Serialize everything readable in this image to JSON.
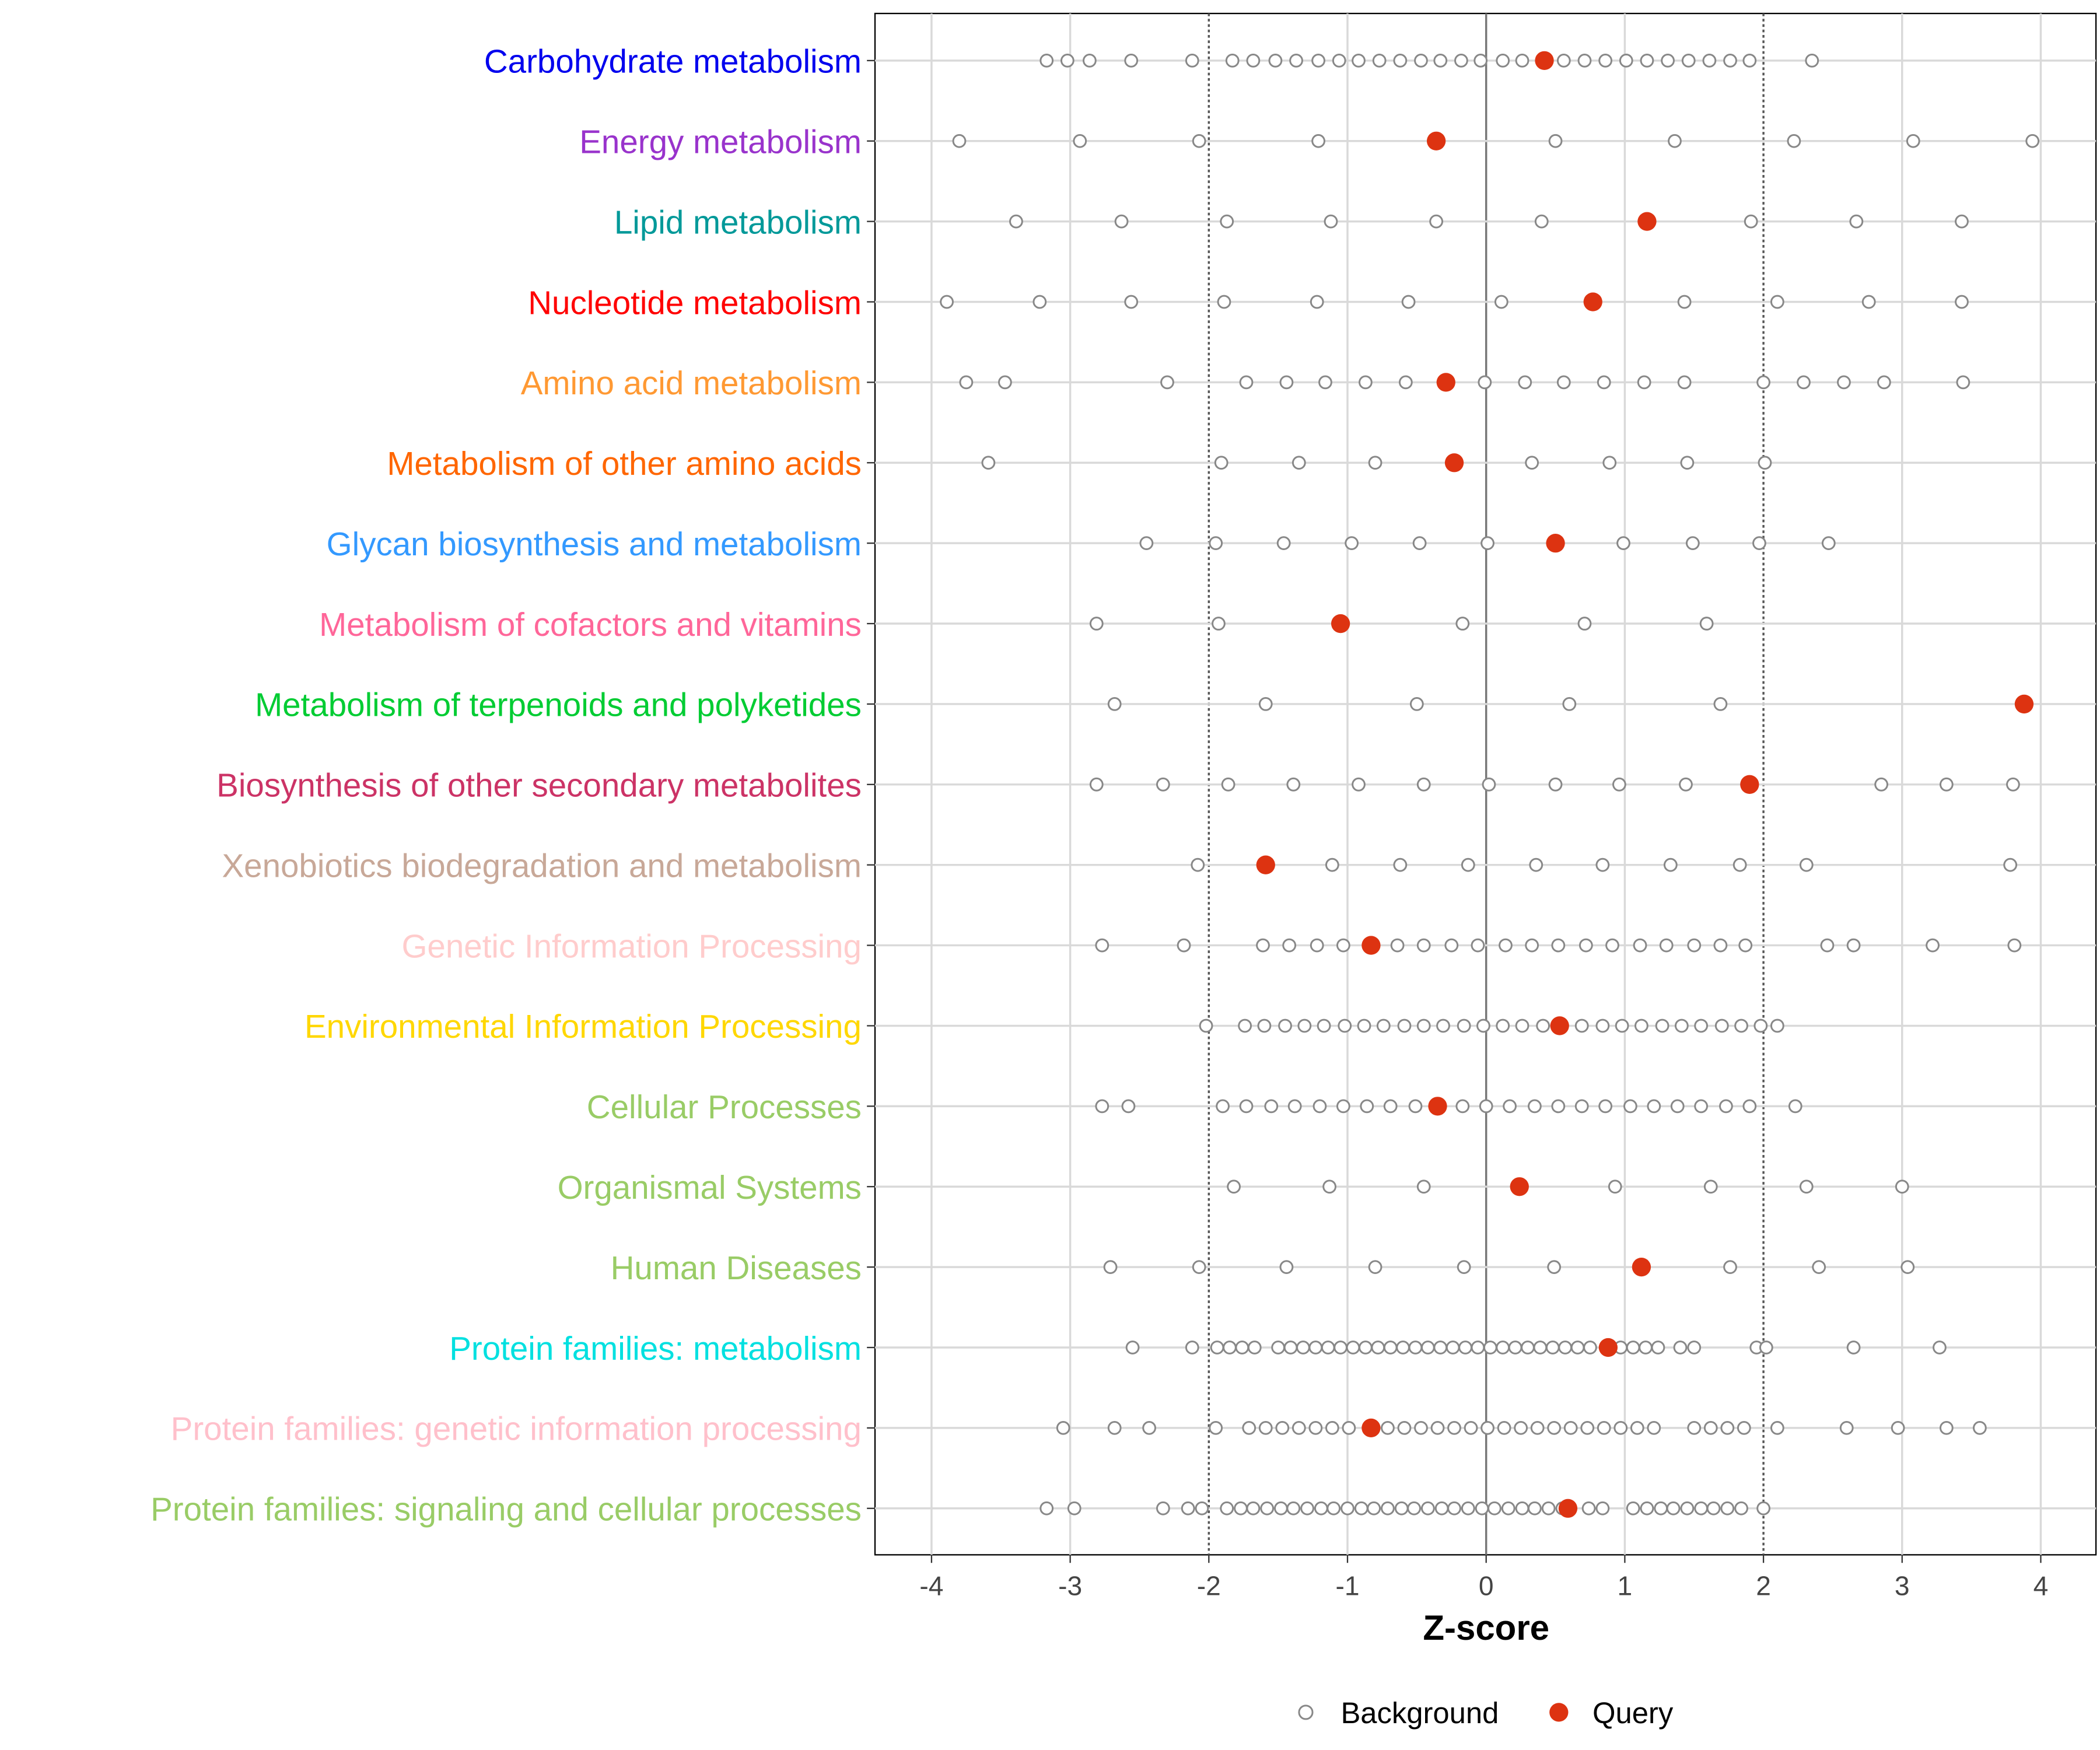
{
  "chart_data": {
    "type": "scatter",
    "title": "",
    "xlabel": "Z-score",
    "ylabel": "",
    "xlim": [
      -4.4,
      4.4
    ],
    "xticks": [
      -4,
      -3,
      -2,
      -1,
      0,
      1,
      2,
      3,
      4
    ],
    "xtick_labels": [
      "-4",
      "-3",
      "-2",
      "-1",
      "0",
      "1",
      "2",
      "3",
      "4"
    ],
    "reference_lines": {
      "solid": [
        0
      ],
      "dotted": [
        -2,
        2
      ]
    },
    "grid": true,
    "legend": {
      "placement": "bottom",
      "entries": [
        {
          "name": "Background",
          "marker": "open-circle",
          "color": "#888888"
        },
        {
          "name": "Query",
          "marker": "filled-circle",
          "color": "#dd3311"
        }
      ]
    },
    "categories": [
      {
        "label": "Carbohydrate metabolism",
        "color": "#0000ee",
        "query": 0.42,
        "background": [
          -3.17,
          -3.02,
          -2.86,
          -2.56,
          -2.12,
          -1.83,
          -1.68,
          -1.52,
          -1.37,
          -1.21,
          -1.06,
          -0.92,
          -0.77,
          -0.62,
          -0.47,
          -0.33,
          -0.18,
          -0.04,
          0.12,
          0.26,
          0.56,
          0.71,
          0.86,
          1.01,
          1.16,
          1.31,
          1.46,
          1.61,
          1.76,
          1.9,
          2.35
        ]
      },
      {
        "label": "Energy metabolism",
        "color": "#9933cc",
        "query": -0.36,
        "background": [
          -3.8,
          -2.93,
          -2.07,
          -1.21,
          0.5,
          1.36,
          2.22,
          3.08,
          3.94
        ]
      },
      {
        "label": "Lipid metabolism",
        "color": "#009999",
        "query": 1.16,
        "background": [
          -3.39,
          -2.63,
          -1.87,
          -1.12,
          -0.36,
          0.4,
          1.91,
          2.67,
          3.43
        ]
      },
      {
        "label": "Nucleotide metabolism",
        "color": "#ff0000",
        "query": 0.77,
        "background": [
          -3.89,
          -3.22,
          -2.56,
          -1.89,
          -1.22,
          -0.56,
          0.11,
          1.43,
          2.1,
          2.76,
          3.43
        ]
      },
      {
        "label": "Amino acid metabolism",
        "color": "#ff9933",
        "query": -0.29,
        "background": [
          -3.75,
          -3.47,
          -2.3,
          -1.73,
          -1.44,
          -1.16,
          -0.87,
          -0.58,
          -0.01,
          0.28,
          0.56,
          0.85,
          1.14,
          1.43,
          2.0,
          2.29,
          2.58,
          2.87,
          3.44
        ]
      },
      {
        "label": "Metabolism of other amino acids",
        "color": "#ff6600",
        "query": -0.23,
        "background": [
          -3.59,
          -1.91,
          -1.35,
          -0.8,
          0.33,
          0.89,
          1.45,
          2.01
        ]
      },
      {
        "label": "Glycan biosynthesis and metabolism",
        "color": "#3399ff",
        "query": 0.5,
        "background": [
          -2.45,
          -1.95,
          -1.46,
          -0.97,
          -0.48,
          0.01,
          0.99,
          1.49,
          1.97,
          2.47
        ]
      },
      {
        "label": "Metabolism of cofactors and vitamins",
        "color": "#ff6699",
        "query": -1.05,
        "background": [
          -2.81,
          -1.93,
          -0.17,
          0.71,
          1.59
        ]
      },
      {
        "label": "Metabolism of terpenoids and polyketides",
        "color": "#00cc33",
        "query": 3.88,
        "background": [
          -2.68,
          -1.59,
          -0.5,
          0.6,
          1.69
        ]
      },
      {
        "label": "Biosynthesis of other secondary metabolites",
        "color": "#cc3366",
        "query": 1.9,
        "background": [
          -2.81,
          -2.33,
          -1.86,
          -1.39,
          -0.92,
          -0.45,
          0.02,
          0.5,
          0.96,
          1.44,
          2.85,
          3.32,
          3.8
        ]
      },
      {
        "label": "Xenobiotics biodegradation and metabolism",
        "color": "#c8a898",
        "query": -1.59,
        "background": [
          -2.08,
          -1.11,
          -0.62,
          -0.13,
          0.36,
          0.84,
          1.33,
          1.83,
          2.31,
          3.78
        ]
      },
      {
        "label": "Genetic Information Processing",
        "color": "#ffcccc",
        "query": -0.83,
        "background": [
          -2.77,
          -2.18,
          -1.61,
          -1.42,
          -1.22,
          -1.03,
          -0.64,
          -0.45,
          -0.25,
          -0.06,
          0.14,
          0.33,
          0.52,
          0.72,
          0.91,
          1.11,
          1.3,
          1.5,
          1.69,
          1.87,
          2.46,
          2.65,
          3.22,
          3.81
        ]
      },
      {
        "label": "Environmental Information Processing",
        "color": "#ffd700",
        "query": 0.53,
        "background": [
          -2.02,
          -1.74,
          -1.6,
          -1.45,
          -1.31,
          -1.17,
          -1.02,
          -0.88,
          -0.74,
          -0.59,
          -0.45,
          -0.31,
          -0.16,
          -0.02,
          0.12,
          0.26,
          0.41,
          0.69,
          0.84,
          0.98,
          1.12,
          1.27,
          1.41,
          1.55,
          1.7,
          1.84,
          1.98,
          2.1
        ]
      },
      {
        "label": "Cellular Processes",
        "color": "#99cc66",
        "query": -0.35,
        "background": [
          -2.77,
          -2.58,
          -1.9,
          -1.73,
          -1.55,
          -1.38,
          -1.2,
          -1.03,
          -0.86,
          -0.69,
          -0.51,
          -0.17,
          0.0,
          0.17,
          0.35,
          0.52,
          0.69,
          0.86,
          1.04,
          1.21,
          1.38,
          1.55,
          1.73,
          1.9,
          2.23
        ]
      },
      {
        "label": "Organismal Systems",
        "color": "#99cc66",
        "query": 0.24,
        "background": [
          -1.82,
          -1.13,
          -0.45,
          0.93,
          1.62,
          2.31,
          3.0
        ]
      },
      {
        "label": "Human Diseases",
        "color": "#99cc66",
        "query": 1.12,
        "background": [
          -2.71,
          -2.07,
          -1.44,
          -0.8,
          -0.16,
          0.49,
          1.76,
          2.4,
          3.04
        ]
      },
      {
        "label": "Protein families: metabolism",
        "color": "#00e0e0",
        "query": 0.88,
        "background": [
          -2.55,
          -2.12,
          -1.94,
          -1.85,
          -1.76,
          -1.67,
          -1.5,
          -1.41,
          -1.32,
          -1.23,
          -1.14,
          -1.05,
          -0.96,
          -0.87,
          -0.78,
          -0.69,
          -0.6,
          -0.51,
          -0.42,
          -0.33,
          -0.24,
          -0.15,
          -0.06,
          0.03,
          0.12,
          0.21,
          0.3,
          0.39,
          0.48,
          0.57,
          0.66,
          0.75,
          0.97,
          1.06,
          1.15,
          1.24,
          1.4,
          1.5,
          1.95,
          2.02,
          2.65,
          3.27
        ]
      },
      {
        "label": "Protein families: genetic information processing",
        "color": "#ffc0cb",
        "query": -0.83,
        "background": [
          -3.05,
          -2.68,
          -2.43,
          -1.95,
          -1.71,
          -1.59,
          -1.47,
          -1.35,
          -1.23,
          -1.11,
          -0.99,
          -0.71,
          -0.59,
          -0.47,
          -0.35,
          -0.23,
          -0.11,
          0.01,
          0.13,
          0.25,
          0.37,
          0.49,
          0.61,
          0.73,
          0.85,
          0.97,
          1.09,
          1.21,
          1.5,
          1.62,
          1.74,
          1.86,
          2.1,
          2.6,
          2.97,
          3.32,
          3.56
        ]
      },
      {
        "label": "Protein families: signaling and cellular processes",
        "color": "#99cc66",
        "query": 0.59,
        "background": [
          -3.17,
          -2.97,
          -2.33,
          -2.15,
          -2.05,
          -1.87,
          -1.77,
          -1.68,
          -1.58,
          -1.48,
          -1.39,
          -1.29,
          -1.19,
          -1.1,
          -1.0,
          -0.9,
          -0.81,
          -0.71,
          -0.61,
          -0.52,
          -0.42,
          -0.32,
          -0.23,
          -0.13,
          -0.03,
          0.06,
          0.16,
          0.26,
          0.35,
          0.45,
          0.55,
          0.74,
          0.84,
          1.06,
          1.16,
          1.26,
          1.35,
          1.45,
          1.55,
          1.64,
          1.74,
          1.84,
          2.0
        ]
      }
    ]
  }
}
